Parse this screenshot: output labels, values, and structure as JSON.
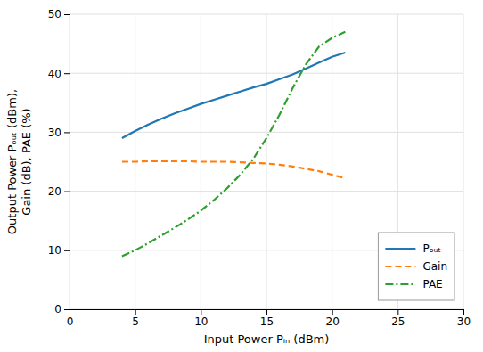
{
  "chart_data": {
    "type": "line",
    "x": [
      4,
      5,
      6,
      7,
      8,
      9,
      10,
      11,
      12,
      13,
      14,
      15,
      16,
      17,
      18,
      19,
      20,
      21
    ],
    "series": [
      {
        "name": "Pₒᵤₜ",
        "line_style": "solid",
        "values": [
          29.0,
          30.2,
          31.3,
          32.3,
          33.2,
          34.0,
          34.8,
          35.5,
          36.2,
          36.9,
          37.6,
          38.2,
          39.0,
          39.8,
          40.8,
          41.8,
          42.8,
          43.5
        ]
      },
      {
        "name": "Gain",
        "line_style": "dashed",
        "values": [
          25.0,
          25.0,
          25.1,
          25.1,
          25.1,
          25.1,
          25.0,
          25.0,
          25.0,
          24.9,
          24.8,
          24.7,
          24.5,
          24.2,
          23.8,
          23.4,
          22.8,
          22.2
        ]
      },
      {
        "name": "PAE",
        "line_style": "dashdot",
        "values": [
          9.0,
          10.0,
          11.2,
          12.5,
          13.8,
          15.2,
          16.7,
          18.5,
          20.5,
          22.8,
          25.5,
          29.0,
          33.0,
          37.5,
          41.5,
          44.5,
          46.0,
          47.0
        ]
      }
    ],
    "xlim": [
      0,
      30
    ],
    "ylim": [
      0,
      50
    ],
    "xticks": [
      0,
      5,
      10,
      15,
      20,
      25,
      30
    ],
    "yticks": [
      0,
      10,
      20,
      30,
      40,
      50
    ],
    "xlabel": "Input Power Pᵢₙ (dBm)",
    "ylabel": "Output Power Pₒᵤₜ (dBm),\nGain (dB), PAE (%)",
    "grid": true,
    "legend": "lower right"
  }
}
